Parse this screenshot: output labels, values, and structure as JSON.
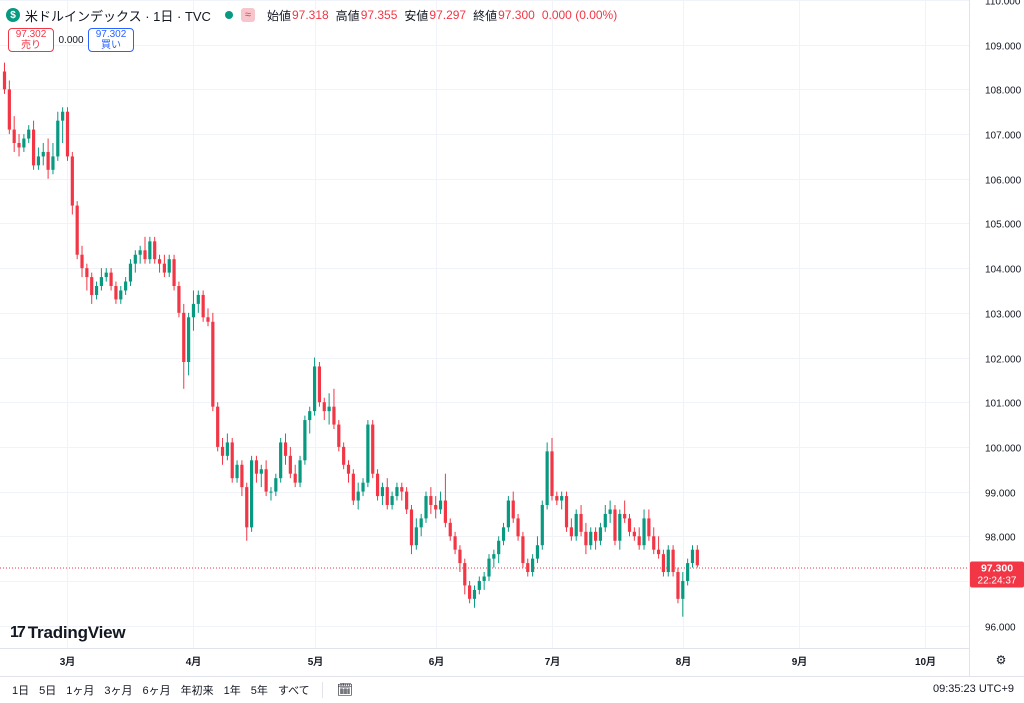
{
  "legend": {
    "symbol_icon": "$",
    "title": "米ドルインデックス · 1日 · TVC",
    "approx_icon": "≈",
    "open_label": "始値",
    "open": "97.318",
    "high_label": "高値",
    "high": "97.355",
    "low_label": "安値",
    "low": "97.297",
    "close_label": "終値",
    "close": "97.300",
    "change": "0.000 (0.00%)"
  },
  "quote": {
    "sell_price": "97.302",
    "sell_label": "売り",
    "spread": "0.000",
    "buy_price": "97.302",
    "buy_label": "買い"
  },
  "price_tag": {
    "price": "97.300",
    "countdown": "22:24:37"
  },
  "logo": {
    "mark": "17",
    "text": "TradingView"
  },
  "bottom_bar": {
    "ranges": [
      "1日",
      "5日",
      "1ヶ月",
      "3ヶ月",
      "6ヶ月",
      "年初来",
      "1年",
      "5年",
      "すべて"
    ],
    "clock": "09:35:23 UTC+9"
  },
  "colors": {
    "up": "#089981",
    "down": "#f23645",
    "grid": "#f0f3fa",
    "text": "#131722"
  },
  "chart_data": {
    "type": "candlestick",
    "ylim": [
      95.5,
      110.0
    ],
    "y_ticks": [
      "96.000",
      "97.000",
      "98.000",
      "99.000",
      "100.000",
      "101.000",
      "102.000",
      "103.000",
      "104.000",
      "105.000",
      "106.000",
      "107.000",
      "108.000",
      "109.000",
      "110.000"
    ],
    "x_ticks": [
      {
        "label": "3月",
        "index": 13
      },
      {
        "label": "4月",
        "index": 39
      },
      {
        "label": "5月",
        "index": 64
      },
      {
        "label": "6月",
        "index": 89
      },
      {
        "label": "7月",
        "index": 113
      },
      {
        "label": "8月",
        "index": 140
      },
      {
        "label": "9月",
        "index": 164
      },
      {
        "label": "10月",
        "index": 190
      }
    ],
    "last_price": 97.3,
    "candles": [
      [
        108.4,
        108.6,
        107.9,
        108.0
      ],
      [
        108.0,
        108.2,
        107.0,
        107.1
      ],
      [
        107.1,
        107.4,
        106.6,
        106.8
      ],
      [
        106.8,
        107.0,
        106.5,
        106.7
      ],
      [
        106.7,
        107.0,
        106.6,
        106.9
      ],
      [
        106.9,
        107.2,
        106.8,
        107.1
      ],
      [
        107.1,
        107.3,
        106.2,
        106.3
      ],
      [
        106.3,
        106.7,
        106.2,
        106.5
      ],
      [
        106.5,
        106.8,
        106.3,
        106.6
      ],
      [
        106.6,
        106.9,
        106.0,
        106.2
      ],
      [
        106.2,
        106.8,
        106.1,
        106.5
      ],
      [
        106.5,
        107.5,
        106.4,
        107.3
      ],
      [
        107.3,
        107.6,
        106.8,
        107.5
      ],
      [
        107.5,
        107.6,
        106.4,
        106.5
      ],
      [
        106.5,
        106.6,
        105.2,
        105.4
      ],
      [
        105.4,
        105.5,
        104.2,
        104.3
      ],
      [
        104.3,
        104.5,
        103.8,
        104.0
      ],
      [
        104.0,
        104.1,
        103.5,
        103.8
      ],
      [
        103.8,
        103.9,
        103.2,
        103.4
      ],
      [
        103.4,
        103.7,
        103.3,
        103.6
      ],
      [
        103.6,
        104.0,
        103.5,
        103.8
      ],
      [
        103.8,
        104.0,
        103.7,
        103.9
      ],
      [
        103.9,
        104.0,
        103.5,
        103.6
      ],
      [
        103.6,
        103.7,
        103.2,
        103.3
      ],
      [
        103.3,
        103.6,
        103.2,
        103.5
      ],
      [
        103.5,
        103.8,
        103.4,
        103.7
      ],
      [
        103.7,
        104.2,
        103.6,
        104.1
      ],
      [
        104.1,
        104.4,
        103.9,
        104.3
      ],
      [
        104.3,
        104.5,
        104.1,
        104.4
      ],
      [
        104.4,
        104.7,
        104.1,
        104.2
      ],
      [
        104.2,
        104.7,
        104.1,
        104.6
      ],
      [
        104.6,
        104.7,
        104.1,
        104.2
      ],
      [
        104.2,
        104.3,
        103.9,
        104.1
      ],
      [
        104.1,
        104.3,
        103.8,
        103.9
      ],
      [
        103.9,
        104.3,
        103.8,
        104.2
      ],
      [
        104.2,
        104.3,
        103.5,
        103.6
      ],
      [
        103.6,
        103.7,
        102.9,
        103.0
      ],
      [
        103.0,
        103.2,
        101.3,
        101.9
      ],
      [
        101.9,
        103.0,
        101.6,
        102.9
      ],
      [
        102.9,
        103.5,
        102.6,
        103.2
      ],
      [
        103.2,
        103.5,
        103.0,
        103.4
      ],
      [
        103.4,
        103.5,
        102.8,
        102.9
      ],
      [
        102.9,
        103.1,
        102.7,
        102.8
      ],
      [
        102.8,
        103.0,
        100.8,
        100.9
      ],
      [
        100.9,
        101.0,
        99.9,
        100.0
      ],
      [
        100.0,
        100.2,
        99.6,
        99.8
      ],
      [
        99.8,
        100.3,
        99.7,
        100.1
      ],
      [
        100.1,
        100.2,
        99.2,
        99.3
      ],
      [
        99.3,
        99.7,
        99.2,
        99.6
      ],
      [
        99.6,
        99.7,
        98.9,
        99.1
      ],
      [
        99.1,
        99.2,
        97.9,
        98.2
      ],
      [
        98.2,
        99.8,
        98.1,
        99.7
      ],
      [
        99.7,
        99.8,
        99.2,
        99.4
      ],
      [
        99.4,
        99.6,
        99.1,
        99.5
      ],
      [
        99.5,
        99.7,
        98.9,
        99.0
      ],
      [
        99.0,
        99.1,
        98.8,
        99.0
      ],
      [
        99.0,
        99.4,
        98.9,
        99.3
      ],
      [
        99.3,
        100.2,
        99.2,
        100.1
      ],
      [
        100.1,
        100.3,
        99.6,
        99.8
      ],
      [
        99.8,
        100.0,
        99.3,
        99.4
      ],
      [
        99.4,
        99.6,
        99.1,
        99.2
      ],
      [
        99.2,
        99.8,
        99.1,
        99.7
      ],
      [
        99.7,
        100.7,
        99.6,
        100.6
      ],
      [
        100.6,
        100.9,
        100.3,
        100.8
      ],
      [
        100.8,
        102.0,
        100.7,
        101.8
      ],
      [
        101.8,
        101.9,
        100.9,
        101.0
      ],
      [
        101.0,
        101.1,
        100.6,
        100.8
      ],
      [
        100.8,
        101.2,
        100.5,
        100.9
      ],
      [
        100.9,
        101.3,
        100.4,
        100.5
      ],
      [
        100.5,
        100.6,
        99.9,
        100.0
      ],
      [
        100.0,
        100.1,
        99.5,
        99.6
      ],
      [
        99.6,
        99.7,
        99.2,
        99.4
      ],
      [
        99.4,
        99.5,
        98.7,
        98.8
      ],
      [
        98.8,
        99.2,
        98.6,
        99.0
      ],
      [
        99.0,
        99.3,
        98.9,
        99.2
      ],
      [
        99.2,
        100.6,
        99.1,
        100.5
      ],
      [
        100.5,
        100.6,
        99.3,
        99.4
      ],
      [
        99.4,
        99.5,
        98.8,
        98.9
      ],
      [
        98.9,
        99.2,
        98.7,
        99.1
      ],
      [
        99.1,
        99.3,
        98.6,
        98.7
      ],
      [
        98.7,
        99.0,
        98.6,
        98.9
      ],
      [
        98.9,
        99.2,
        98.8,
        99.1
      ],
      [
        99.1,
        99.2,
        98.8,
        99.0
      ],
      [
        99.0,
        99.1,
        98.5,
        98.6
      ],
      [
        98.6,
        98.7,
        97.6,
        97.8
      ],
      [
        97.8,
        98.4,
        97.7,
        98.2
      ],
      [
        98.2,
        98.5,
        98.0,
        98.4
      ],
      [
        98.4,
        99.0,
        98.3,
        98.9
      ],
      [
        98.9,
        99.1,
        98.5,
        98.7
      ],
      [
        98.7,
        98.9,
        98.4,
        98.6
      ],
      [
        98.6,
        99.0,
        98.5,
        98.8
      ],
      [
        98.8,
        99.4,
        98.2,
        98.3
      ],
      [
        98.3,
        98.4,
        97.9,
        98.0
      ],
      [
        98.0,
        98.1,
        97.6,
        97.7
      ],
      [
        97.7,
        97.8,
        97.2,
        97.4
      ],
      [
        97.4,
        97.5,
        96.7,
        96.9
      ],
      [
        96.9,
        97.0,
        96.5,
        96.6
      ],
      [
        96.6,
        96.9,
        96.4,
        96.8
      ],
      [
        96.8,
        97.1,
        96.7,
        97.0
      ],
      [
        97.0,
        97.2,
        96.8,
        97.1
      ],
      [
        97.1,
        97.6,
        97.0,
        97.5
      ],
      [
        97.5,
        97.7,
        97.3,
        97.6
      ],
      [
        97.6,
        98.0,
        97.4,
        97.9
      ],
      [
        97.9,
        98.3,
        97.8,
        98.2
      ],
      [
        98.2,
        98.9,
        98.1,
        98.8
      ],
      [
        98.8,
        99.0,
        98.3,
        98.4
      ],
      [
        98.4,
        98.5,
        97.9,
        98.0
      ],
      [
        98.0,
        98.1,
        97.3,
        97.4
      ],
      [
        97.4,
        97.5,
        97.1,
        97.2
      ],
      [
        97.2,
        97.6,
        97.1,
        97.5
      ],
      [
        97.5,
        98.0,
        97.4,
        97.8
      ],
      [
        97.8,
        98.8,
        97.7,
        98.7
      ],
      [
        98.7,
        100.1,
        98.6,
        99.9
      ],
      [
        99.9,
        100.2,
        98.8,
        98.9
      ],
      [
        98.9,
        99.0,
        98.7,
        98.8
      ],
      [
        98.8,
        99.0,
        98.6,
        98.9
      ],
      [
        98.9,
        99.0,
        98.1,
        98.2
      ],
      [
        98.2,
        98.4,
        97.9,
        98.0
      ],
      [
        98.0,
        98.6,
        97.9,
        98.5
      ],
      [
        98.5,
        98.7,
        98.0,
        98.1
      ],
      [
        98.1,
        98.3,
        97.6,
        97.8
      ],
      [
        97.8,
        98.2,
        97.7,
        98.1
      ],
      [
        98.1,
        98.2,
        97.7,
        97.9
      ],
      [
        97.9,
        98.3,
        97.8,
        98.2
      ],
      [
        98.2,
        98.7,
        98.1,
        98.5
      ],
      [
        98.5,
        98.8,
        98.3,
        98.6
      ],
      [
        98.6,
        98.7,
        97.8,
        97.9
      ],
      [
        97.9,
        98.6,
        97.7,
        98.5
      ],
      [
        98.5,
        98.8,
        98.3,
        98.4
      ],
      [
        98.4,
        98.5,
        98.0,
        98.1
      ],
      [
        98.1,
        98.2,
        97.9,
        98.0
      ],
      [
        98.0,
        98.2,
        97.7,
        97.8
      ],
      [
        97.8,
        98.6,
        97.7,
        98.4
      ],
      [
        98.4,
        98.6,
        97.9,
        98.0
      ],
      [
        98.0,
        98.2,
        97.6,
        97.7
      ],
      [
        97.7,
        98.0,
        97.5,
        97.6
      ],
      [
        97.6,
        97.7,
        97.1,
        97.2
      ],
      [
        97.2,
        97.8,
        97.1,
        97.7
      ],
      [
        97.7,
        97.8,
        97.1,
        97.2
      ],
      [
        97.2,
        97.3,
        96.5,
        96.6
      ],
      [
        96.6,
        97.2,
        96.2,
        97.0
      ],
      [
        97.0,
        97.5,
        96.9,
        97.4
      ],
      [
        97.4,
        97.8,
        97.3,
        97.7
      ],
      [
        97.7,
        97.8,
        97.3,
        97.35
      ]
    ]
  }
}
